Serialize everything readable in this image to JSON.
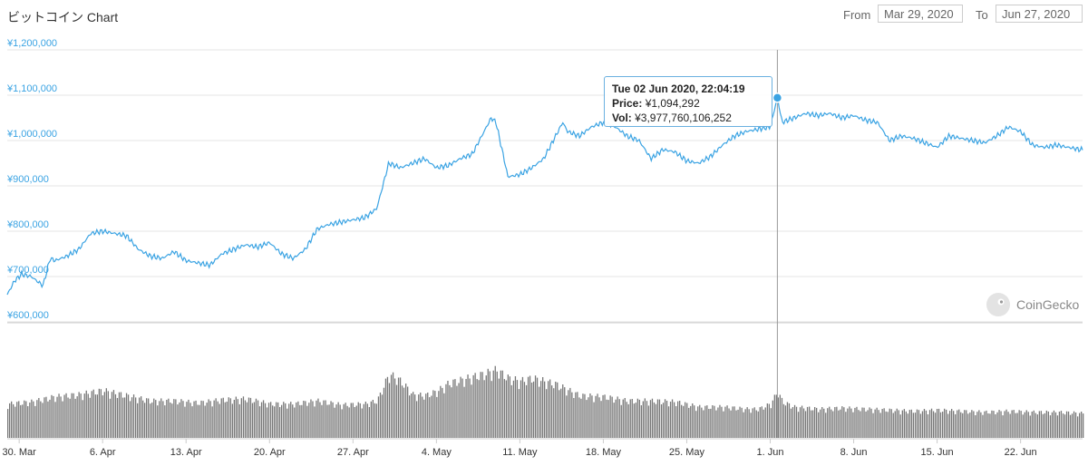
{
  "title": "ビットコイン Chart",
  "range": {
    "from_label": "From",
    "from_value": "Mar 29, 2020",
    "to_label": "To",
    "to_value": "Jun 27, 2020"
  },
  "watermark": "CoinGecko",
  "tooltip": {
    "date": "Tue 02 Jun 2020, 22:04:19",
    "price_label": "Price:",
    "price_value": "¥1,094,292",
    "vol_label": "Vol:",
    "vol_value": "¥3,977,760,106,252"
  },
  "colors": {
    "price_line": "#3aa3e3",
    "volume": "#777777",
    "grid": "#e6e6e6",
    "crosshair": "#999999"
  },
  "chart_data": {
    "type": "line",
    "x_unit": "days since Mar 29, 2020",
    "yticks": [
      "¥1,200,000",
      "¥1,100,000",
      "¥1,000,000",
      "¥900,000",
      "¥800,000",
      "¥700,000",
      "¥600,000"
    ],
    "ytick_values": [
      1200000,
      1100000,
      1000000,
      900000,
      800000,
      700000,
      600000
    ],
    "ylim": [
      600000,
      1200000
    ],
    "xticks": [
      "30. Mar",
      "6. Apr",
      "13. Apr",
      "20. Apr",
      "27. Apr",
      "4. May",
      "11. May",
      "18. May",
      "25. May",
      "1. Jun",
      "8. Jun",
      "15. Jun",
      "22. Jun"
    ],
    "xtick_days": [
      1,
      8,
      15,
      22,
      29,
      36,
      43,
      50,
      57,
      64,
      71,
      78,
      85
    ],
    "xlim": [
      0,
      90.2
    ],
    "price_series": {
      "name": "Price",
      "x": [
        0,
        0.6,
        1.2,
        2,
        3,
        3.6,
        4,
        5,
        6,
        7,
        8,
        9,
        10,
        11,
        12,
        13,
        14,
        15,
        16,
        17,
        18,
        19,
        20,
        21,
        22,
        23,
        24,
        25,
        26,
        27,
        28,
        29,
        30,
        31,
        32,
        33,
        34,
        35,
        36,
        37,
        38,
        39,
        40,
        40.6,
        41,
        42,
        43,
        44,
        45,
        46,
        46.6,
        47,
        48,
        49,
        50,
        51,
        52,
        53,
        54,
        55,
        56,
        57,
        58,
        59,
        60,
        61,
        62,
        63,
        64,
        64.6,
        65,
        66,
        67,
        68,
        69,
        70,
        71,
        72,
        73,
        74,
        75,
        76,
        77,
        78,
        79,
        80,
        81,
        82,
        83,
        84,
        85,
        86,
        87,
        88,
        89,
        90
      ],
      "y": [
        660000,
        690000,
        705000,
        700000,
        680000,
        740000,
        735000,
        745000,
        760000,
        795000,
        800000,
        795000,
        790000,
        760000,
        745000,
        740000,
        755000,
        735000,
        730000,
        725000,
        750000,
        760000,
        770000,
        765000,
        775000,
        750000,
        740000,
        760000,
        805000,
        815000,
        820000,
        825000,
        830000,
        850000,
        950000,
        940000,
        950000,
        960000,
        940000,
        945000,
        960000,
        970000,
        1020000,
        1050000,
        1040000,
        920000,
        925000,
        940000,
        960000,
        1010000,
        1040000,
        1020000,
        1010000,
        1030000,
        1040000,
        1030000,
        1010000,
        1000000,
        960000,
        980000,
        975000,
        955000,
        950000,
        965000,
        990000,
        1010000,
        1020000,
        1025000,
        1030000,
        1094292,
        1040000,
        1050000,
        1060000,
        1055000,
        1060000,
        1050000,
        1055000,
        1045000,
        1040000,
        1000000,
        1010000,
        1005000,
        995000,
        985000,
        1010000,
        1005000,
        1000000,
        995000,
        1010000,
        1030000,
        1020000,
        990000,
        985000,
        990000,
        985000,
        980000
      ]
    },
    "volume_series": {
      "name": "Vol",
      "x": [
        0,
        2,
        4,
        6,
        8,
        10,
        12,
        14,
        16,
        18,
        20,
        22,
        24,
        26,
        28,
        30,
        31,
        32,
        33,
        34,
        35,
        36,
        37,
        38,
        40,
        41,
        42,
        43,
        44,
        46,
        48,
        50,
        52,
        54,
        56,
        58,
        60,
        62,
        63,
        64,
        64.6,
        65,
        66,
        68,
        70,
        72,
        74,
        76,
        78,
        80,
        82,
        84,
        86,
        88,
        90
      ],
      "y": [
        0.33,
        0.35,
        0.4,
        0.42,
        0.46,
        0.41,
        0.36,
        0.36,
        0.34,
        0.37,
        0.38,
        0.33,
        0.33,
        0.36,
        0.32,
        0.33,
        0.36,
        0.62,
        0.55,
        0.42,
        0.41,
        0.45,
        0.53,
        0.56,
        0.62,
        0.66,
        0.58,
        0.55,
        0.58,
        0.52,
        0.41,
        0.4,
        0.36,
        0.36,
        0.35,
        0.3,
        0.3,
        0.28,
        0.28,
        0.33,
        0.45,
        0.35,
        0.3,
        0.28,
        0.29,
        0.28,
        0.27,
        0.26,
        0.27,
        0.26,
        0.25,
        0.26,
        0.25,
        0.25,
        0.24
      ]
    },
    "grid": true
  }
}
